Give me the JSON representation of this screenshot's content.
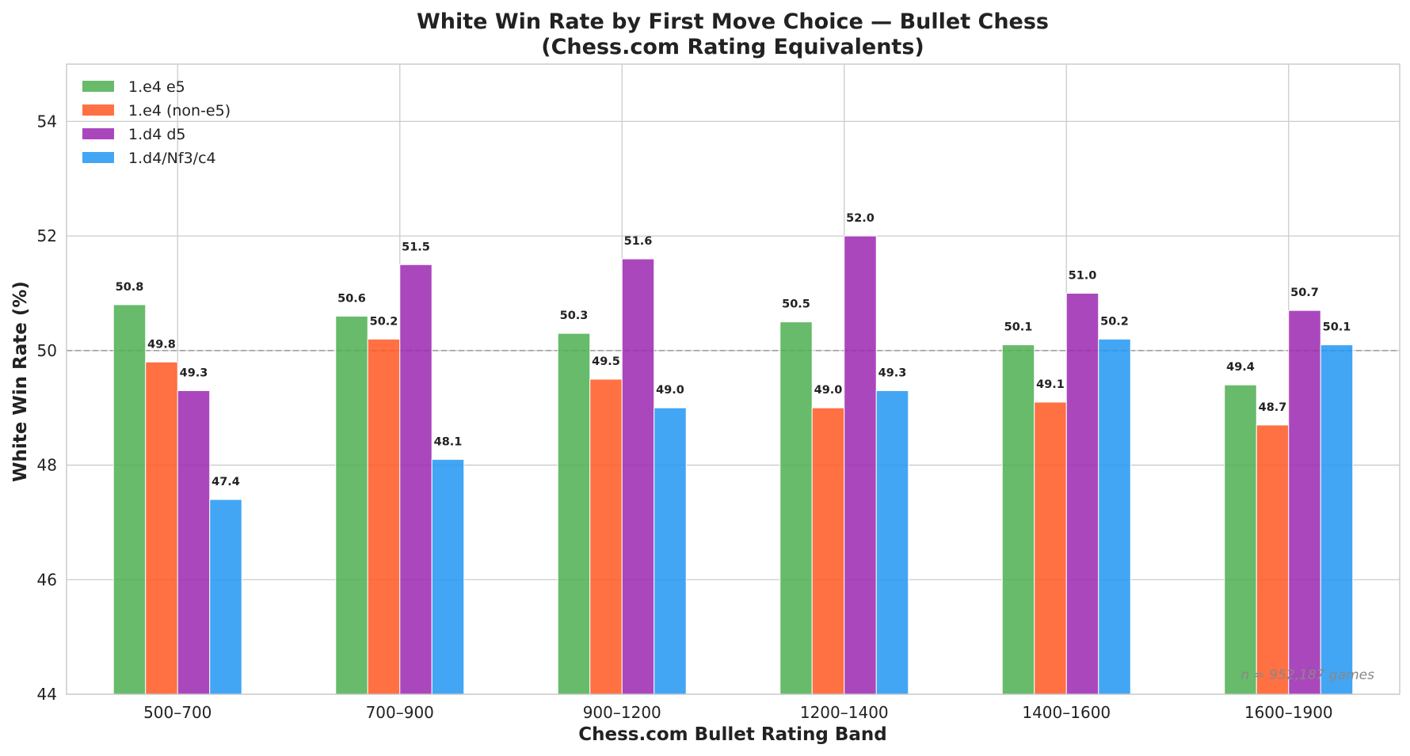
{
  "chart_data": {
    "type": "bar",
    "title": "White Win Rate by First Move Choice — Bullet Chess",
    "subtitle": "(Chess.com Rating Equivalents)",
    "xlabel": "Chess.com Bullet Rating Band",
    "ylabel": "White Win Rate (%)",
    "categories": [
      "500–700",
      "700–900",
      "900–1200",
      "1200–1400",
      "1400–1600",
      "1600–1900"
    ],
    "series": [
      {
        "name": "1.e4 e5",
        "color": "#4caf50",
        "values": [
          50.8,
          50.6,
          50.3,
          50.5,
          50.1,
          49.4
        ]
      },
      {
        "name": "1.e4 (non-e5)",
        "color": "#ff5722",
        "values": [
          49.8,
          50.2,
          49.5,
          49.0,
          49.1,
          48.7
        ]
      },
      {
        "name": "1.d4 d5",
        "color": "#9c27b0",
        "values": [
          49.3,
          51.5,
          51.6,
          52.0,
          51.0,
          50.7
        ]
      },
      {
        "name": "1.d4/Nf3/c4",
        "color": "#2196f3",
        "values": [
          47.4,
          48.1,
          49.0,
          49.3,
          50.2,
          50.1
        ]
      }
    ],
    "ylim": [
      44,
      55
    ],
    "yticks": [
      44,
      46,
      48,
      50,
      52,
      54
    ],
    "reference_line": 50,
    "grid": true,
    "legend_position": "top-left",
    "annotation": "n = 952,187 games"
  }
}
